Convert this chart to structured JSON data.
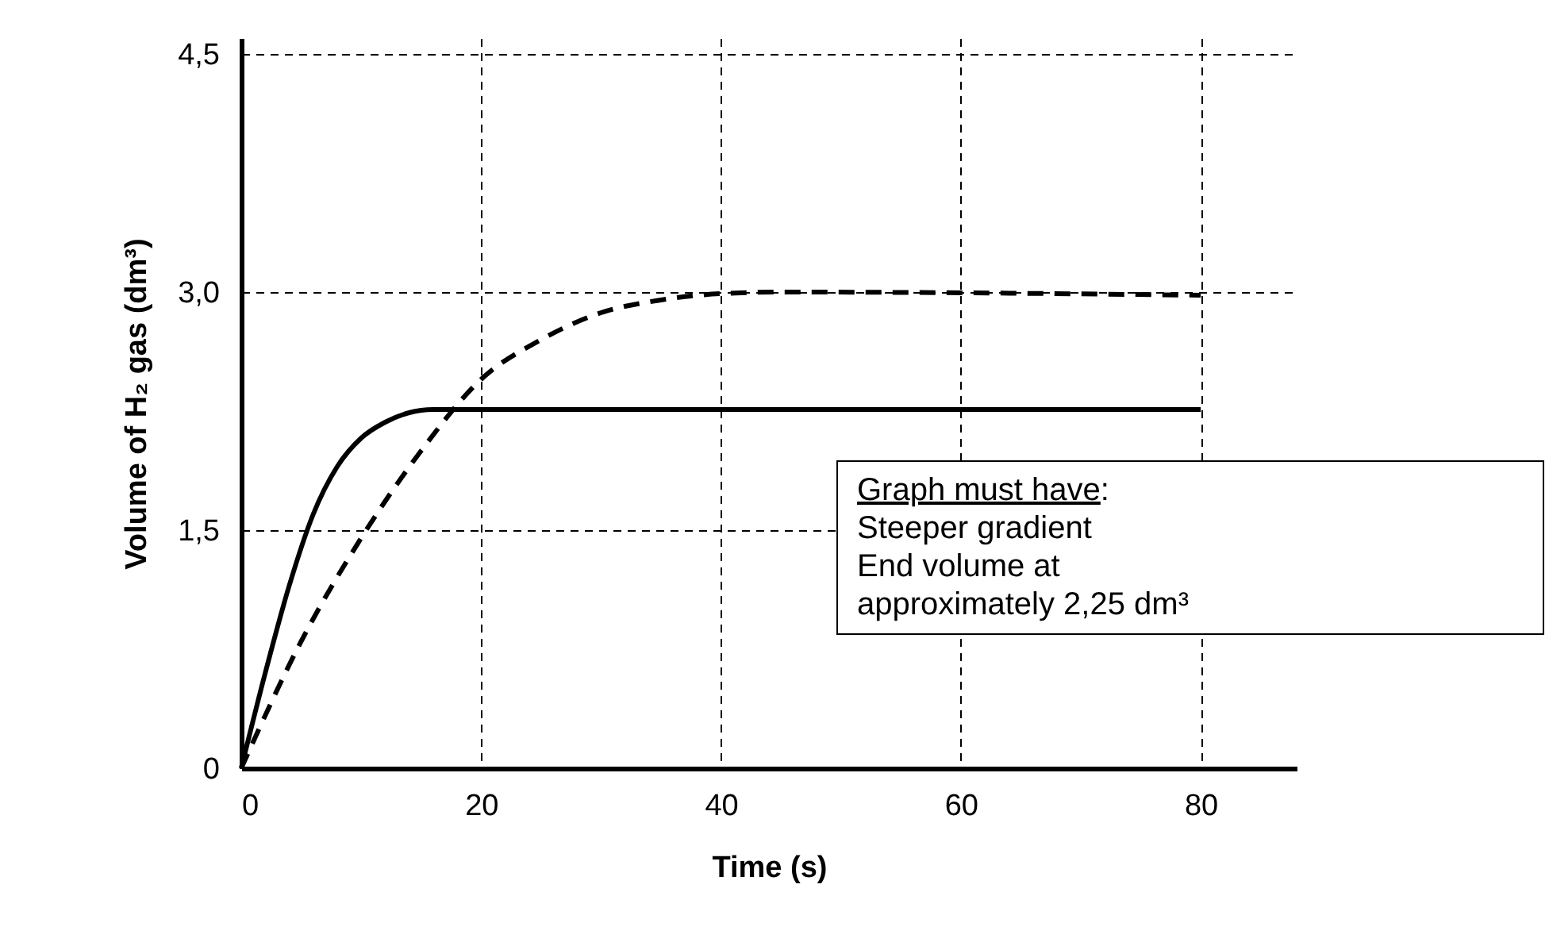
{
  "chart_data": {
    "type": "line",
    "xlabel": "Time (s)",
    "ylabel": "Volume of H₂ gas (dm³)",
    "xlim": [
      0,
      88
    ],
    "ylim": [
      0,
      4.6
    ],
    "xticks": [
      0,
      20,
      40,
      60,
      80
    ],
    "yticks": [
      0,
      {
        "value": 1.5,
        "label": "1,5"
      },
      {
        "value": 3,
        "label": "3,0"
      },
      {
        "value": 4.5,
        "label": "4,5"
      }
    ],
    "grid": true,
    "series": [
      {
        "color": "#000000",
        "line_style": "solid",
        "x": [
          0,
          2,
          4,
          6,
          8,
          10,
          12,
          14,
          16,
          80
        ],
        "values": [
          0,
          0.6,
          1.15,
          1.6,
          1.9,
          2.08,
          2.18,
          2.24,
          2.26,
          2.26
        ]
      },
      {
        "color": "#000000",
        "line_style": "dashed",
        "x": [
          0,
          5,
          10,
          15,
          20,
          25,
          30,
          35,
          40,
          45,
          80
        ],
        "values": [
          0,
          0.8,
          1.45,
          2.0,
          2.45,
          2.7,
          2.87,
          2.95,
          2.99,
          3.0,
          2.98
        ]
      }
    ],
    "annotations": [
      "Graph must have:",
      "Steeper gradient",
      "End volume at approximately 2,25 dm³"
    ]
  }
}
